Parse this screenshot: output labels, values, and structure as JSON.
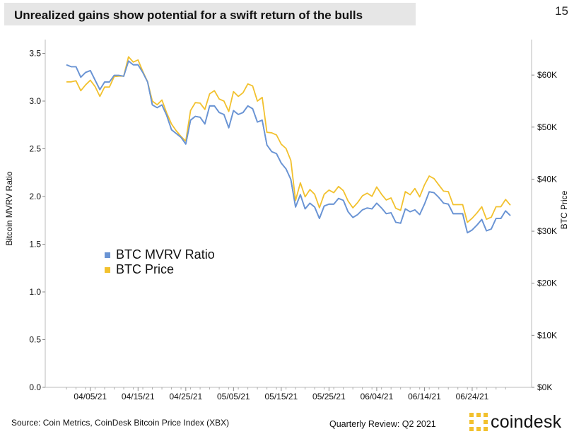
{
  "header": {
    "title": "Unrealized gains show potential for a swift return of the bulls",
    "page_number": "15"
  },
  "footer": {
    "source": "Source: Coin Metrics, CoinDesk Bitcoin Price Index (XBX)",
    "review": "Quarterly Review: Q2 2021",
    "brand": "coindesk"
  },
  "colors": {
    "mvrv": "#6a94d4",
    "price": "#f2c12e",
    "axis": "#bbbbbb",
    "brand": "#f2c12e"
  },
  "chart_data": {
    "type": "line",
    "title": "Unrealized gains show potential for a swift return of the bulls",
    "ylabel": "Bitcoin MVRV Ratio",
    "y2label": "BTC Price",
    "ylim": [
      0,
      3.6
    ],
    "y2lim": [
      0,
      66000
    ],
    "yticks": [
      "0.0",
      "0.5",
      "1.0",
      "1.5",
      "2.0",
      "2.5",
      "3.0",
      "3.5"
    ],
    "y2ticks": [
      "$0K",
      "$10K",
      "$20K",
      "$30K",
      "$40K",
      "$50K",
      "$60K"
    ],
    "xticks": [
      "04/05/21",
      "04/15/21",
      "04/25/21",
      "05/05/21",
      "05/15/21",
      "05/25/21",
      "06/04/21",
      "06/14/21",
      "06/24/21"
    ],
    "xtick_index": [
      5,
      15,
      25,
      35,
      45,
      55,
      65,
      75,
      85
    ],
    "legend": [
      "BTC MVRV Ratio",
      "BTC Price"
    ],
    "x_start": "03/31/21",
    "series": [
      {
        "name": "BTC MVRV Ratio",
        "axis": "left",
        "values": [
          3.38,
          3.36,
          3.36,
          3.25,
          3.3,
          3.32,
          3.22,
          3.12,
          3.2,
          3.2,
          3.27,
          3.27,
          3.26,
          3.42,
          3.38,
          3.38,
          3.3,
          3.2,
          2.96,
          2.93,
          2.96,
          2.85,
          2.7,
          2.66,
          2.62,
          2.55,
          2.8,
          2.84,
          2.83,
          2.76,
          2.95,
          2.95,
          2.88,
          2.86,
          2.72,
          2.9,
          2.86,
          2.88,
          2.95,
          2.92,
          2.78,
          2.8,
          2.54,
          2.47,
          2.45,
          2.35,
          2.29,
          2.18,
          1.89,
          2.02,
          1.87,
          1.93,
          1.89,
          1.77,
          1.9,
          1.92,
          1.92,
          1.98,
          1.96,
          1.84,
          1.78,
          1.81,
          1.86,
          1.88,
          1.87,
          1.93,
          1.88,
          1.82,
          1.83,
          1.73,
          1.72,
          1.87,
          1.84,
          1.86,
          1.81,
          1.92,
          2.05,
          2.04,
          1.99,
          1.93,
          1.92,
          1.82,
          1.82,
          1.82,
          1.62,
          1.65,
          1.7,
          1.76,
          1.64,
          1.66,
          1.77,
          1.77,
          1.85,
          1.8
        ]
      },
      {
        "name": "BTC Price",
        "axis": "right",
        "values": [
          58700,
          58700,
          58900,
          57000,
          58100,
          59000,
          57800,
          55900,
          57700,
          57700,
          59700,
          59800,
          59800,
          63500,
          62500,
          62900,
          60700,
          58700,
          55000,
          54300,
          55200,
          52700,
          50600,
          49300,
          48200,
          47300,
          53200,
          54700,
          54600,
          53400,
          56400,
          57000,
          55400,
          55000,
          53000,
          56800,
          55900,
          56600,
          58300,
          57900,
          55000,
          55700,
          49000,
          48900,
          48500,
          46700,
          45900,
          43600,
          35900,
          39300,
          36600,
          38000,
          37100,
          34500,
          37100,
          37900,
          37400,
          38600,
          37800,
          35800,
          34500,
          35500,
          36800,
          37300,
          36700,
          38500,
          37100,
          36000,
          36400,
          34400,
          34000,
          37600,
          37000,
          38200,
          36600,
          38900,
          40600,
          40100,
          38900,
          37700,
          37600,
          35100,
          35100,
          35100,
          31700,
          32500,
          33500,
          34700,
          32300,
          32700,
          34700,
          34700,
          36100,
          35000
        ]
      }
    ]
  }
}
